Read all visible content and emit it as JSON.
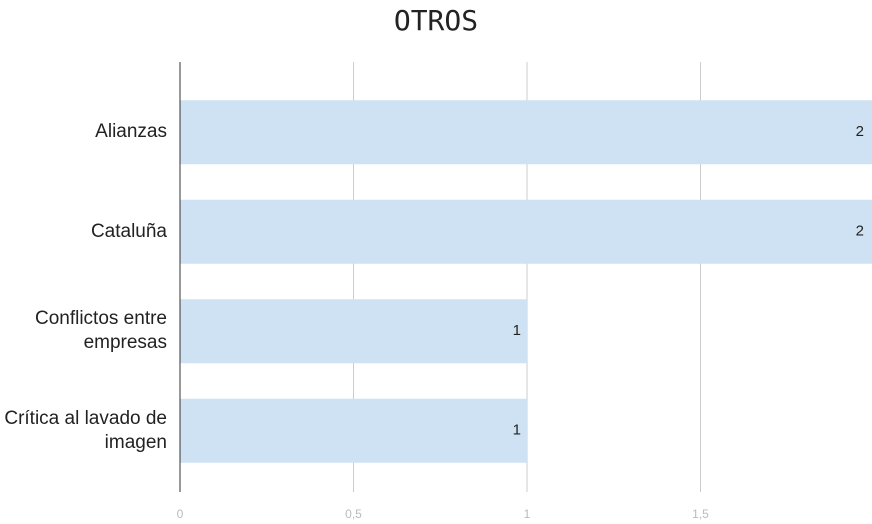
{
  "chart_data": {
    "type": "bar",
    "orientation": "horizontal",
    "title": "OTROS",
    "categories": [
      "Alianzas",
      "Cataluña",
      "Conflictos entre empresas",
      "Crítica al lavado de imagen"
    ],
    "values": [
      2,
      2,
      1,
      1
    ],
    "color": "#cfe2f3",
    "xlim": [
      0,
      2
    ],
    "xticks": [
      0,
      {
        "value": 0.5,
        "label": "0,5"
      },
      1,
      {
        "value": 1.5,
        "label": "1,5"
      }
    ],
    "grid": true
  }
}
